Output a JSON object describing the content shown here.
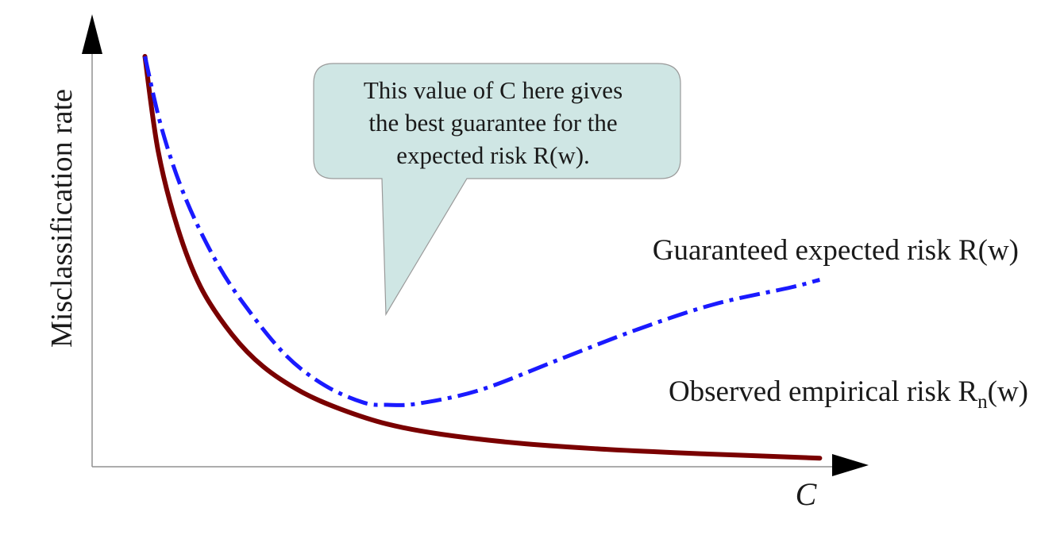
{
  "chart_data": {
    "type": "line",
    "title": "",
    "xlabel": "C",
    "ylabel": "Misclassification rate",
    "xlim": [
      0,
      1
    ],
    "ylim": [
      0,
      1
    ],
    "grid": false,
    "colors": {
      "guaranteed": "#1a1aff",
      "empirical": "#7a0000",
      "callout_fill": "#cfe6e4",
      "callout_stroke": "#9a9a9a"
    },
    "series": [
      {
        "key": "guaranteed",
        "name": "Guaranteed expected risk R(w)",
        "style": "dash-dot",
        "x": [
          0.068,
          0.09,
          0.12,
          0.16,
          0.2,
          0.25,
          0.3,
          0.35,
          0.38,
          0.42,
          0.5,
          0.6,
          0.7,
          0.8,
          0.9,
          0.937
        ],
        "y": [
          0.961,
          0.79,
          0.63,
          0.48,
          0.37,
          0.26,
          0.19,
          0.15,
          0.145,
          0.148,
          0.18,
          0.25,
          0.32,
          0.38,
          0.42,
          0.438
        ]
      },
      {
        "key": "empirical",
        "name": "Observed empirical risk",
        "name_subscript": "n",
        "name_suffix": "(w)",
        "style": "solid",
        "x": [
          0.068,
          0.085,
          0.11,
          0.14,
          0.18,
          0.22,
          0.27,
          0.32,
          0.38,
          0.45,
          0.55,
          0.65,
          0.75,
          0.85,
          0.937
        ],
        "y": [
          0.961,
          0.74,
          0.56,
          0.42,
          0.31,
          0.235,
          0.175,
          0.135,
          0.1,
          0.076,
          0.055,
          0.042,
          0.033,
          0.026,
          0.02
        ]
      }
    ],
    "annotation": {
      "lines": [
        "This value of C here gives",
        "the best guarantee for the",
        "expected risk R(w)."
      ]
    }
  }
}
